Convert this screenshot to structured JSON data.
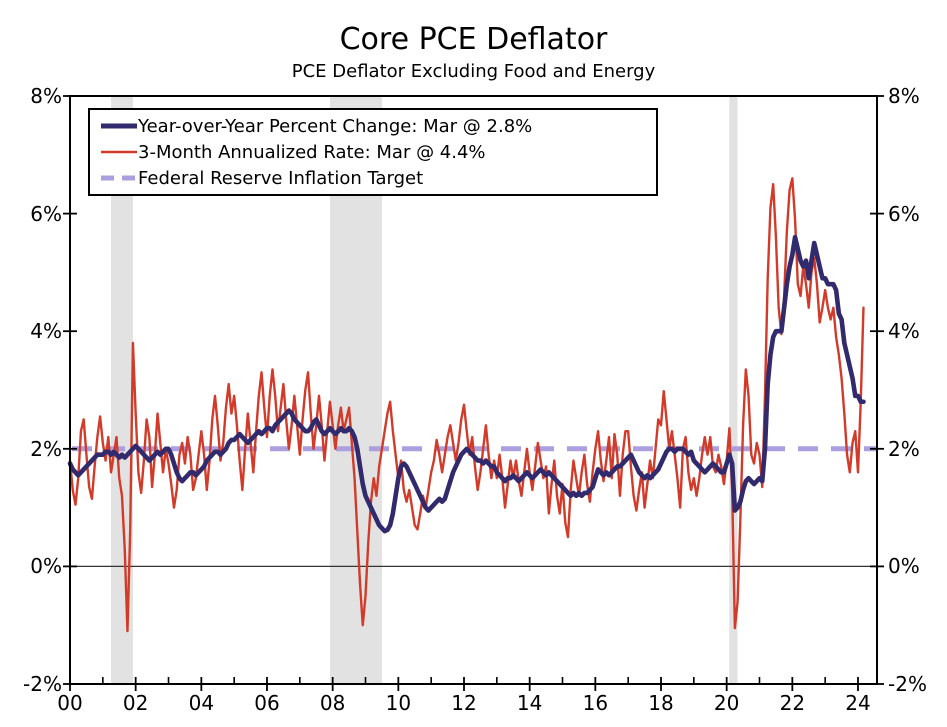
{
  "header": {
    "title": "Core PCE Deflator",
    "subtitle": "PCE Deflator Excluding Food and Energy"
  },
  "legend": {
    "items": [
      {
        "label": "Year-over-Year Percent Change: Mar @ 2.8%",
        "color": "#312a6d",
        "style": "solid",
        "thickness": 5
      },
      {
        "label": "3-Month Annualized Rate: Mar @ 4.4%",
        "color": "#d23b2a",
        "style": "solid",
        "thickness": 2.4
      },
      {
        "label": "Federal Reserve Inflation Target",
        "color": "#ab9fe0",
        "style": "dashed",
        "thickness": 5
      }
    ]
  },
  "axes": {
    "y_left": [
      "8%",
      "6%",
      "4%",
      "2%",
      "0%",
      "-2%"
    ],
    "y_right": [
      "8%",
      "6%",
      "4%",
      "2%",
      "0%",
      "-2%"
    ],
    "y_values": [
      8,
      6,
      4,
      2,
      0,
      -2
    ],
    "x": [
      "00",
      "02",
      "04",
      "06",
      "08",
      "10",
      "12",
      "14",
      "16",
      "18",
      "20",
      "22",
      "24"
    ]
  },
  "colors": {
    "yoy_line": "#312a6d",
    "three_month_line": "#d23b2a",
    "target_line": "#ab9fe0",
    "recession_band": "#e2e2e2",
    "axis": "#000000",
    "zero_line": "#333333",
    "background": "#ffffff"
  },
  "chart_data": {
    "type": "line",
    "title": "Core PCE Deflator",
    "subtitle": "PCE Deflator Excluding Food and Energy",
    "x_start_year": 2000,
    "freq": "monthly",
    "x_end_label": "Mar 2024",
    "xlim": [
      2000,
      2024.58
    ],
    "ylim": [
      -2,
      8
    ],
    "y_tick_step": 2,
    "y_format": "percent",
    "grid": "zero-line-only",
    "legend_position": "top-left-inside",
    "recession_bands": [
      {
        "start": 2001.25,
        "end": 2001.92
      },
      {
        "start": 2007.92,
        "end": 2009.5
      },
      {
        "start": 2020.08,
        "end": 2020.33
      }
    ],
    "series": [
      {
        "name": "Year-over-Year Percent Change",
        "latest": "Mar @ 2.8%",
        "color": "#312a6d",
        "width": 4.6,
        "values": [
          1.75,
          1.65,
          1.6,
          1.55,
          1.6,
          1.65,
          1.7,
          1.75,
          1.8,
          1.85,
          1.9,
          1.9,
          1.9,
          1.95,
          1.95,
          1.9,
          1.95,
          1.9,
          1.85,
          1.9,
          1.85,
          1.9,
          1.95,
          2.0,
          2.05,
          2.0,
          1.95,
          1.9,
          1.85,
          1.8,
          1.85,
          1.9,
          1.95,
          1.9,
          1.95,
          2.0,
          2.0,
          1.9,
          1.75,
          1.6,
          1.5,
          1.45,
          1.5,
          1.55,
          1.6,
          1.6,
          1.55,
          1.6,
          1.65,
          1.7,
          1.8,
          1.85,
          1.9,
          1.95,
          1.95,
          1.9,
          1.95,
          2.0,
          2.1,
          2.15,
          2.15,
          2.2,
          2.25,
          2.2,
          2.15,
          2.1,
          2.15,
          2.2,
          2.25,
          2.3,
          2.25,
          2.3,
          2.35,
          2.35,
          2.3,
          2.4,
          2.45,
          2.5,
          2.55,
          2.6,
          2.65,
          2.6,
          2.5,
          2.45,
          2.4,
          2.35,
          2.3,
          2.3,
          2.35,
          2.45,
          2.5,
          2.4,
          2.3,
          2.25,
          2.3,
          2.35,
          2.3,
          2.25,
          2.3,
          2.35,
          2.3,
          2.3,
          2.35,
          2.3,
          2.2,
          2.0,
          1.7,
          1.4,
          1.2,
          1.1,
          1.0,
          0.9,
          0.8,
          0.7,
          0.65,
          0.6,
          0.62,
          0.7,
          0.9,
          1.2,
          1.5,
          1.7,
          1.75,
          1.7,
          1.6,
          1.5,
          1.4,
          1.3,
          1.2,
          1.1,
          1.0,
          0.95,
          1.0,
          1.05,
          1.1,
          1.15,
          1.1,
          1.15,
          1.3,
          1.45,
          1.6,
          1.7,
          1.8,
          1.9,
          1.95,
          2.0,
          1.95,
          1.9,
          1.85,
          1.8,
          1.8,
          1.75,
          1.8,
          1.75,
          1.7,
          1.7,
          1.6,
          1.55,
          1.5,
          1.45,
          1.5,
          1.5,
          1.55,
          1.5,
          1.45,
          1.5,
          1.55,
          1.6,
          1.55,
          1.5,
          1.55,
          1.6,
          1.65,
          1.6,
          1.55,
          1.6,
          1.55,
          1.5,
          1.45,
          1.4,
          1.35,
          1.3,
          1.25,
          1.2,
          1.25,
          1.2,
          1.25,
          1.2,
          1.25,
          1.25,
          1.3,
          1.35,
          1.5,
          1.65,
          1.6,
          1.55,
          1.6,
          1.55,
          1.6,
          1.65,
          1.7,
          1.7,
          1.75,
          1.8,
          1.85,
          1.9,
          1.8,
          1.7,
          1.6,
          1.55,
          1.5,
          1.55,
          1.5,
          1.55,
          1.6,
          1.65,
          1.75,
          1.85,
          1.95,
          2.0,
          2.0,
          1.95,
          2.0,
          2.0,
          2.0,
          1.95,
          1.9,
          1.95,
          1.8,
          1.75,
          1.7,
          1.65,
          1.6,
          1.65,
          1.7,
          1.75,
          1.7,
          1.65,
          1.6,
          1.6,
          1.75,
          1.9,
          1.75,
          0.95,
          1.0,
          1.1,
          1.3,
          1.45,
          1.5,
          1.45,
          1.4,
          1.45,
          1.5,
          1.45,
          2.0,
          3.1,
          3.6,
          3.9,
          4.0,
          4.0,
          4.0,
          4.4,
          4.8,
          5.1,
          5.3,
          5.6,
          5.4,
          5.2,
          5.1,
          5.2,
          4.9,
          5.2,
          5.5,
          5.3,
          5.1,
          4.9,
          4.9,
          4.8,
          4.8,
          4.8,
          4.7,
          4.3,
          4.2,
          3.8,
          3.6,
          3.4,
          3.2,
          2.9,
          2.9,
          2.8,
          2.8
        ]
      },
      {
        "name": "3-Month Annualized Rate",
        "latest": "Mar @ 4.4%",
        "color": "#d23b2a",
        "width": 2.4,
        "values": [
          1.8,
          1.3,
          1.05,
          1.5,
          2.3,
          2.5,
          1.9,
          1.35,
          1.15,
          1.7,
          2.2,
          2.55,
          2.1,
          1.8,
          2.2,
          1.6,
          1.9,
          2.2,
          1.5,
          1.2,
          0.3,
          -1.1,
          0.6,
          3.8,
          2.6,
          1.6,
          1.25,
          1.8,
          2.5,
          2.2,
          1.35,
          1.9,
          2.6,
          2.1,
          1.6,
          2.0,
          1.75,
          1.4,
          1.0,
          1.3,
          1.9,
          2.1,
          1.75,
          2.2,
          1.9,
          1.3,
          1.5,
          1.9,
          2.3,
          1.9,
          1.3,
          1.8,
          2.5,
          2.9,
          2.4,
          1.8,
          2.1,
          2.7,
          3.1,
          2.6,
          2.9,
          2.4,
          1.8,
          1.3,
          2.0,
          2.6,
          2.1,
          1.6,
          2.3,
          2.9,
          3.3,
          2.7,
          2.2,
          2.9,
          3.35,
          2.9,
          2.3,
          2.7,
          3.1,
          2.5,
          2.0,
          2.4,
          2.9,
          2.4,
          1.9,
          2.5,
          3.0,
          3.3,
          2.6,
          2.0,
          2.4,
          2.9,
          2.4,
          1.8,
          2.3,
          2.8,
          2.4,
          2.0,
          2.4,
          2.7,
          2.3,
          2.5,
          2.7,
          2.1,
          1.5,
          0.6,
          -0.3,
          -1.0,
          -0.5,
          0.4,
          1.1,
          1.5,
          1.2,
          1.7,
          2.0,
          2.3,
          2.6,
          2.8,
          2.3,
          1.9,
          1.5,
          1.8,
          1.3,
          1.1,
          1.3,
          1.0,
          0.7,
          0.63,
          0.9,
          1.2,
          1.0,
          1.3,
          1.6,
          1.8,
          2.15,
          1.9,
          1.6,
          1.9,
          2.2,
          2.4,
          2.1,
          1.8,
          2.1,
          2.5,
          2.75,
          2.3,
          1.9,
          2.2,
          1.7,
          1.3,
          1.6,
          2.0,
          2.4,
          1.9,
          1.5,
          1.8,
          1.5,
          1.9,
          1.5,
          1.0,
          1.4,
          1.8,
          1.5,
          1.8,
          1.45,
          1.2,
          1.6,
          2.0,
          1.6,
          1.3,
          1.7,
          2.1,
          1.8,
          1.5,
          1.7,
          0.9,
          1.4,
          1.8,
          1.2,
          0.9,
          1.4,
          0.75,
          0.5,
          1.3,
          1.8,
          1.5,
          1.2,
          1.6,
          1.9,
          1.4,
          1.1,
          1.6,
          2.0,
          2.3,
          1.8,
          1.45,
          1.8,
          2.2,
          1.5,
          2.25,
          1.9,
          1.2,
          1.9,
          2.3,
          2.3,
          1.7,
          1.2,
          0.95,
          1.3,
          1.6,
          1.0,
          1.4,
          1.8,
          1.5,
          2.0,
          2.5,
          2.4,
          2.98,
          2.5,
          2.0,
          2.3,
          1.9,
          1.5,
          1.0,
          2.0,
          2.2,
          1.6,
          1.3,
          1.5,
          1.2,
          1.5,
          1.9,
          2.2,
          1.9,
          2.2,
          1.7,
          1.6,
          1.9,
          1.7,
          1.4,
          1.8,
          2.35,
          1.3,
          -1.05,
          -0.6,
          0.8,
          2.4,
          3.35,
          2.9,
          1.9,
          1.75,
          2.1,
          1.9,
          1.35,
          2.9,
          4.9,
          6.1,
          6.5,
          5.6,
          4.4,
          3.95,
          4.6,
          5.7,
          6.4,
          6.6,
          5.9,
          4.8,
          4.6,
          5.1,
          4.8,
          4.4,
          5.0,
          5.25,
          4.8,
          4.15,
          4.4,
          4.7,
          4.4,
          4.2,
          4.4,
          3.9,
          3.6,
          3.2,
          2.6,
          1.9,
          1.6,
          2.1,
          2.3,
          1.6,
          2.8,
          4.4
        ]
      },
      {
        "name": "Federal Reserve Inflation Target",
        "color": "#ab9fe0",
        "style": "dashed",
        "width": 5,
        "value": 2.0
      }
    ]
  }
}
